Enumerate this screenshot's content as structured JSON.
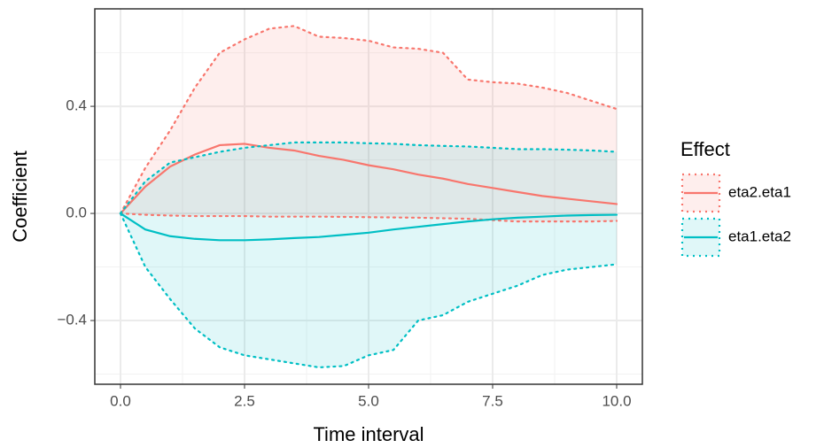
{
  "chart_data": {
    "type": "ribbon-line",
    "x_label": "Time interval",
    "y_label": "Coefficient",
    "legend_title": "Effect",
    "x": [
      0,
      0.5,
      1,
      1.5,
      2,
      2.5,
      3,
      3.5,
      4,
      4.5,
      5,
      5.5,
      6,
      6.5,
      7,
      7.5,
      8,
      8.5,
      9,
      9.5,
      10
    ],
    "series": [
      {
        "name": "eta2.eta1",
        "color": "#F8766D",
        "values": [
          0,
          0.1,
          0.175,
          0.22,
          0.255,
          0.26,
          0.245,
          0.235,
          0.215,
          0.2,
          0.18,
          0.165,
          0.145,
          0.13,
          0.11,
          0.095,
          0.08,
          0.065,
          0.055,
          0.045,
          0.035
        ],
        "upper": [
          0,
          0.17,
          0.31,
          0.47,
          0.6,
          0.65,
          0.69,
          0.7,
          0.66,
          0.655,
          0.645,
          0.62,
          0.615,
          0.6,
          0.5,
          0.49,
          0.485,
          0.47,
          0.45,
          0.42,
          0.39
        ],
        "lower": [
          0,
          -0.005,
          -0.008,
          -0.01,
          -0.01,
          -0.01,
          -0.012,
          -0.012,
          -0.012,
          -0.013,
          -0.014,
          -0.015,
          -0.016,
          -0.018,
          -0.02,
          -0.025,
          -0.03,
          -0.03,
          -0.03,
          -0.03,
          -0.028
        ]
      },
      {
        "name": "eta1.eta2",
        "color": "#00BFC4",
        "values": [
          0,
          -0.06,
          -0.085,
          -0.095,
          -0.1,
          -0.1,
          -0.097,
          -0.092,
          -0.088,
          -0.08,
          -0.072,
          -0.06,
          -0.05,
          -0.04,
          -0.03,
          -0.022,
          -0.016,
          -0.012,
          -0.008,
          -0.006,
          -0.005
        ],
        "upper": [
          0,
          0.12,
          0.19,
          0.21,
          0.23,
          0.245,
          0.255,
          0.265,
          0.265,
          0.265,
          0.262,
          0.26,
          0.255,
          0.252,
          0.25,
          0.245,
          0.24,
          0.24,
          0.238,
          0.235,
          0.23
        ],
        "lower": [
          0,
          -0.2,
          -0.32,
          -0.43,
          -0.5,
          -0.53,
          -0.545,
          -0.56,
          -0.575,
          -0.57,
          -0.53,
          -0.51,
          -0.4,
          -0.38,
          -0.33,
          -0.3,
          -0.27,
          -0.23,
          -0.21,
          -0.2,
          -0.19
        ]
      }
    ],
    "xlim": [
      -0.518,
      10.518
    ],
    "ylim": [
      -0.638,
      0.764
    ],
    "xticks": [
      {
        "value": 0,
        "label": "0.0"
      },
      2.5,
      {
        "value": 5,
        "label": "5.0"
      },
      7.5,
      {
        "value": 10,
        "label": "10.0"
      }
    ],
    "yticks": [
      {
        "value": -0.4,
        "label": "−0.4"
      },
      {
        "value": 0,
        "label": "0.0"
      },
      {
        "value": 0.4,
        "label": "0.4"
      }
    ],
    "x_minor_ticks": [
      1.25,
      3.75,
      6.25,
      8.75
    ],
    "y_minor_ticks": [
      -0.6,
      -0.2,
      0.2,
      0.6
    ],
    "grid": true
  }
}
